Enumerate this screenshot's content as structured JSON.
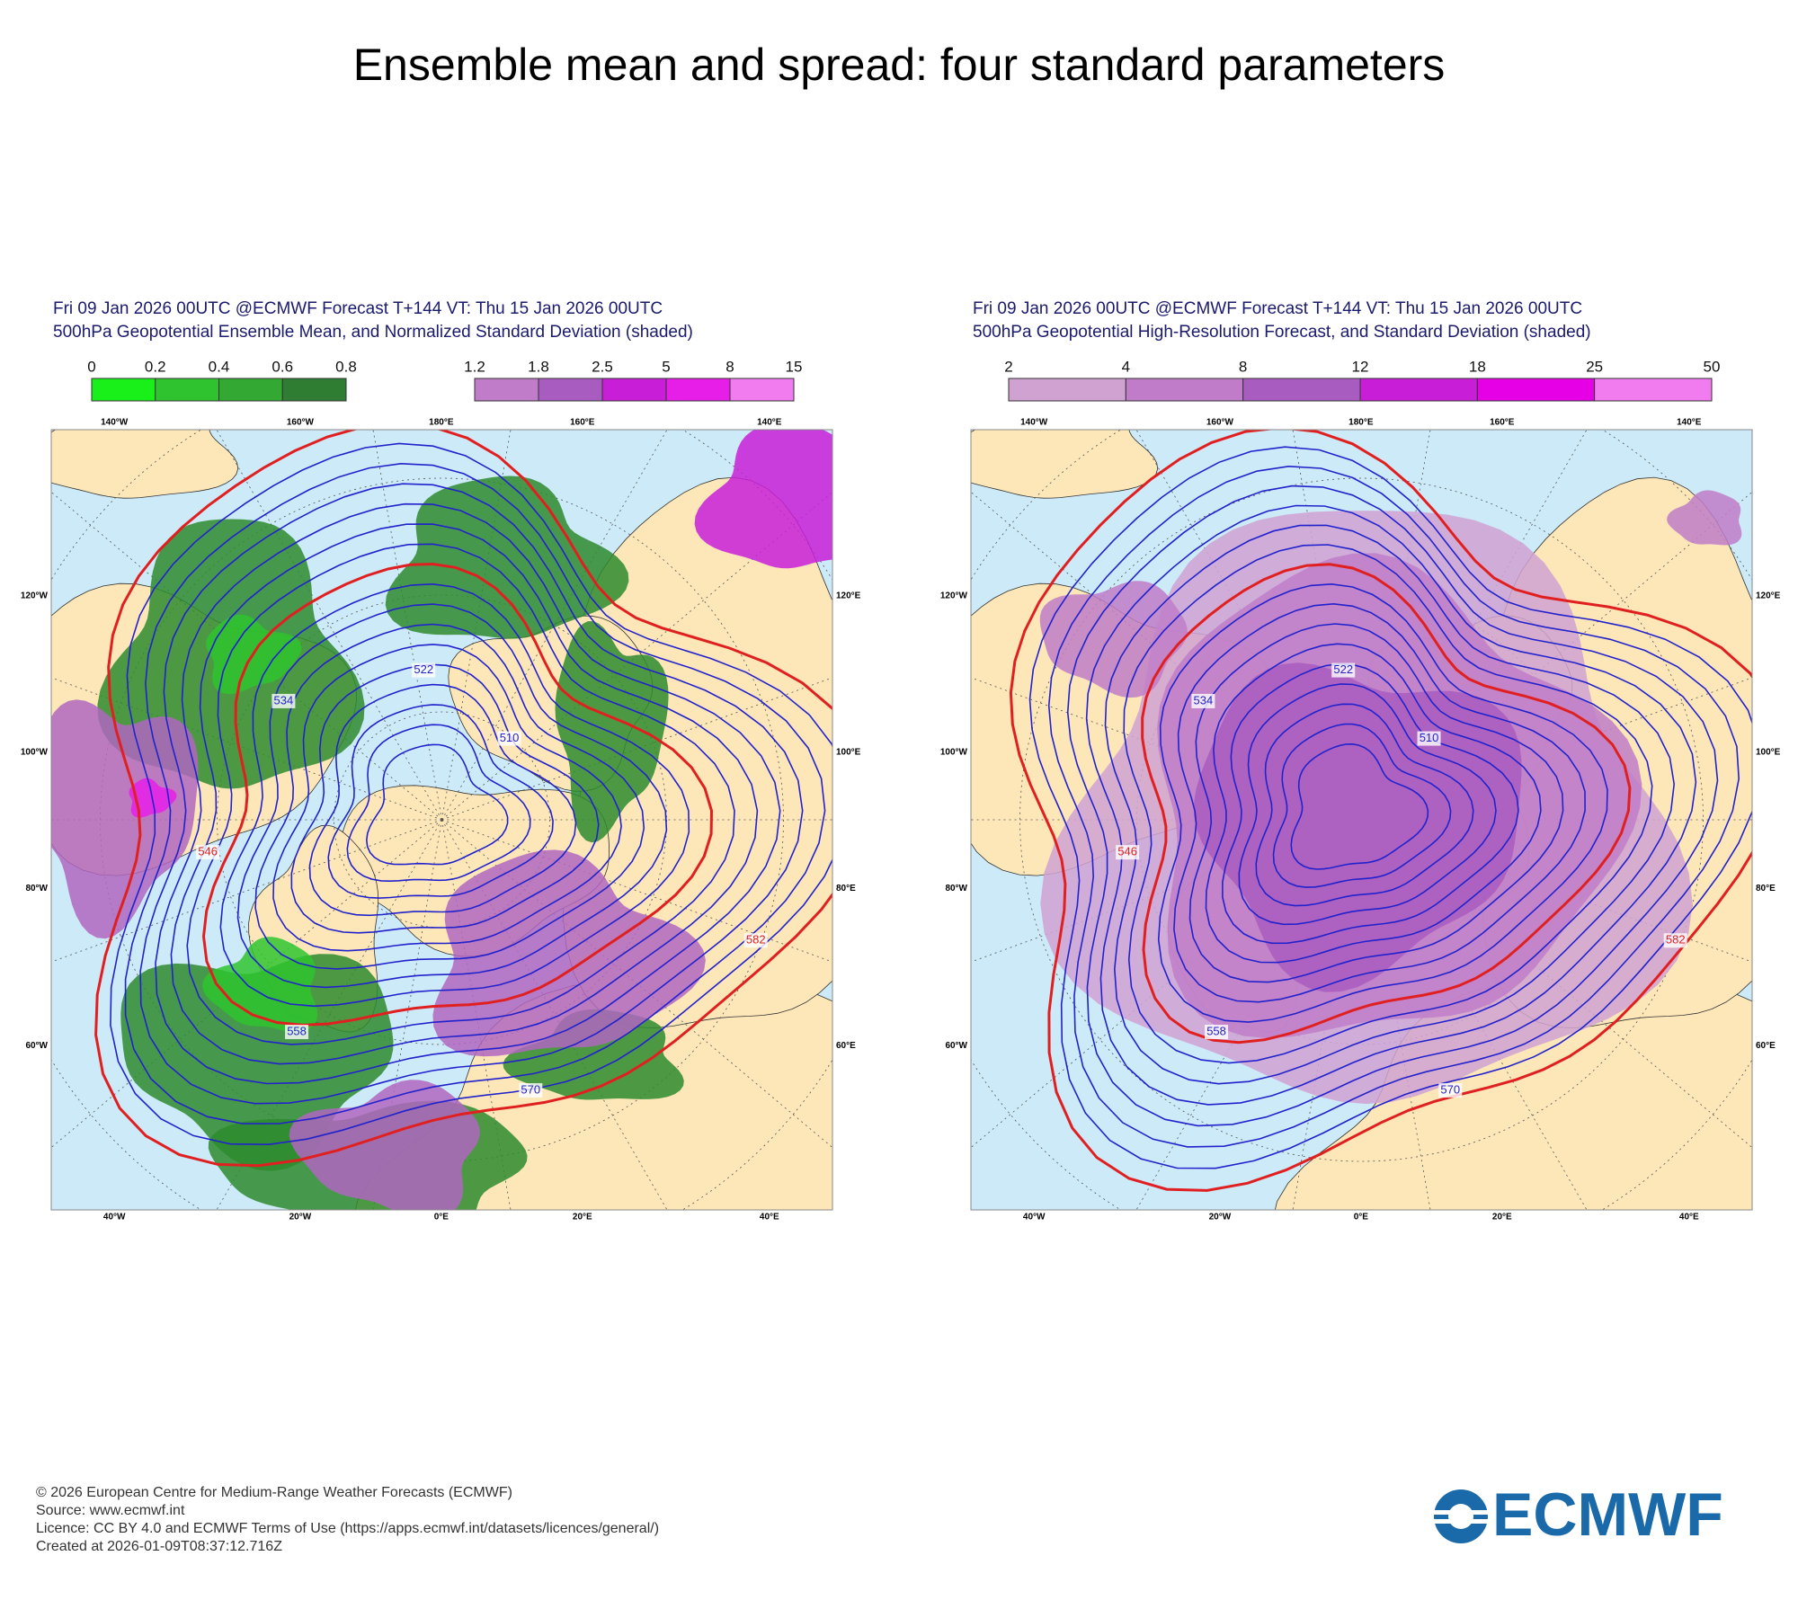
{
  "title": "Ensemble mean and spread: four standard parameters",
  "panels": [
    {
      "header": [
        "Fri 09 Jan 2026 00UTC @ECMWF Forecast T+144 VT: Thu 15 Jan 2026 00UTC",
        "500hPa Geopotential Ensemble Mean, and Normalized Standard Deviation (shaded)"
      ],
      "colorbars": [
        {
          "labels": [
            "0",
            "0.2",
            "0.4",
            "0.6",
            "0.8"
          ],
          "colors": [
            "#19f019",
            "#2fc42f",
            "#33a833",
            "#2e7d32"
          ]
        },
        {
          "labels": [
            "1.2",
            "1.8",
            "2.5",
            "5",
            "8",
            "15"
          ],
          "colors": [
            "#c07cc8",
            "#a95cc0",
            "#c81ed8",
            "#e61ee8",
            "#f07cf0"
          ]
        }
      ],
      "lon_top": [
        "140°W",
        "160°W",
        "180°E",
        "160°E",
        "140°E"
      ],
      "lon_bottom": [
        "40°W",
        "20°W",
        "0°E",
        "20°E",
        "40°E"
      ],
      "lat_left": [
        "120°W",
        "100°W",
        "80°W",
        "60°W"
      ],
      "lat_right": [
        "120°E",
        "100°E",
        "80°E",
        "60°E"
      ],
      "contour_labels": [
        "582",
        "570",
        "558",
        "546",
        "534",
        "522",
        "510"
      ]
    },
    {
      "header": [
        "Fri 09 Jan 2026 00UTC @ECMWF Forecast T+144 VT: Thu 15 Jan 2026 00UTC",
        "500hPa Geopotential High-Resolution Forecast, and Standard Deviation (shaded)"
      ],
      "colorbars": [
        {
          "labels": [
            "2",
            "4",
            "8",
            "12",
            "18",
            "25",
            "50"
          ],
          "colors": [
            "#d0a2d2",
            "#c07cc8",
            "#a95cc0",
            "#c81ed8",
            "#e600e6",
            "#f07cf0"
          ]
        }
      ],
      "lon_top": [
        "140°W",
        "160°W",
        "180°E",
        "160°E",
        "140°E"
      ],
      "lon_bottom": [
        "40°W",
        "20°W",
        "0°E",
        "20°E",
        "40°E"
      ],
      "lat_left": [
        "120°W",
        "100°W",
        "80°W",
        "60°W"
      ],
      "lat_right": [
        "120°E",
        "100°E",
        "80°E",
        "60°E"
      ],
      "contour_labels": [
        "582",
        "570",
        "558",
        "546",
        "534",
        "522",
        "510"
      ]
    }
  ],
  "footer": [
    "© 2026 European Centre for Medium-Range Weather Forecasts (ECMWF)",
    "Source: www.ecmwf.int",
    "Licence: CC BY 4.0 and ECMWF Terms of Use (https://apps.ecmwf.int/datasets/licences/general/)",
    "Created at 2026-01-09T08:37:12.716Z"
  ],
  "logo": "ECMWF"
}
